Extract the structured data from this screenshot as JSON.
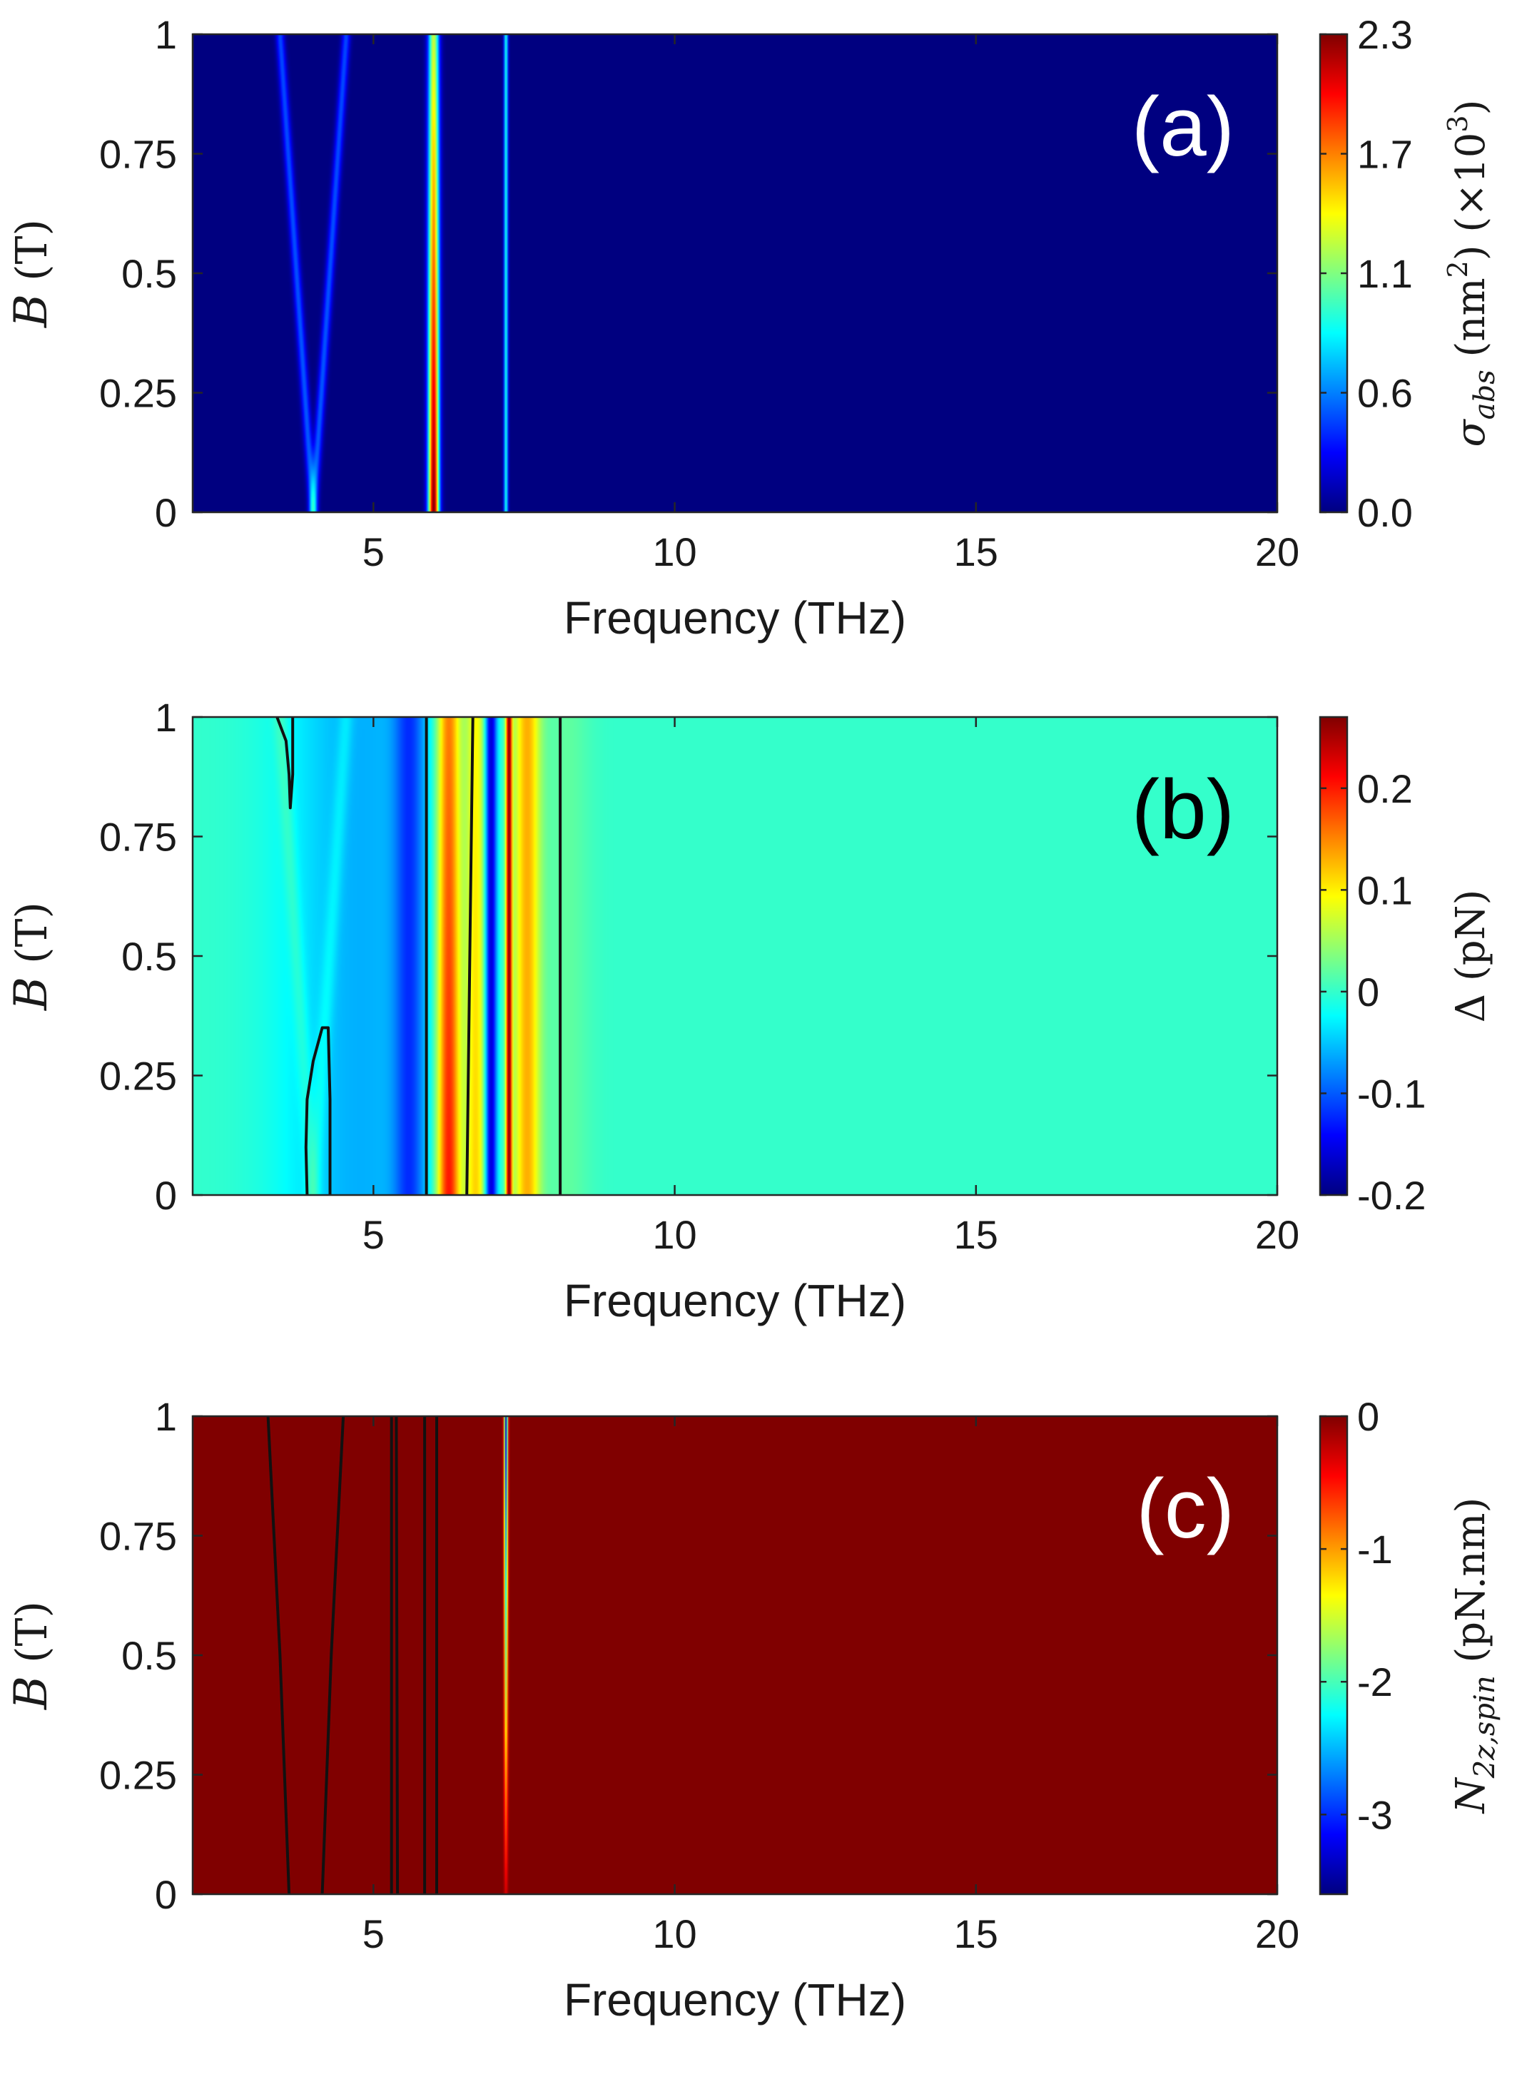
{
  "figure": {
    "xlabel": "Frequency (THz)",
    "ylabel_var": "B",
    "ylabel_unit": "(T)"
  },
  "colors": {
    "contour": "#111111",
    "axis": "#262626",
    "label_light": "#ffffff",
    "label_dark": "#000000"
  },
  "chart_data": [
    {
      "type": "heatmap",
      "panel_label": "(a)",
      "label_color": "light",
      "xlabel": "Frequency (THz)",
      "ylabel": "B (T)",
      "xlim": [
        2,
        20
      ],
      "ylim": [
        0,
        1
      ],
      "xticks": [
        "5",
        "10",
        "15",
        "20"
      ],
      "xtick_values": [
        5,
        10,
        15,
        20
      ],
      "yticks": [
        "0",
        "0.25",
        "0.5",
        "0.75",
        "1"
      ],
      "ytick_values": [
        0,
        0.25,
        0.5,
        0.75,
        1
      ],
      "colorbar": {
        "label_parts": [
          {
            "t": "σ",
            "i": true
          },
          {
            "t": "abs",
            "i": true,
            "sub": true
          },
          {
            "t": " (nm"
          },
          {
            "t": "2",
            "sup": true
          },
          {
            "t": ") (×10"
          },
          {
            "t": "3",
            "sup": true
          },
          {
            "t": ")"
          }
        ],
        "range": [
          0,
          2.3
        ],
        "ticks": [
          "0.0",
          "0.6",
          "1.1",
          "1.7",
          "2.3"
        ],
        "tick_values": [
          0,
          0.575,
          1.15,
          1.725,
          2.3
        ]
      },
      "background_value": 0,
      "features": [
        {
          "kind": "line",
          "f0": 4.0,
          "slope": -0.55,
          "width": 0.07,
          "amp0": 0.5,
          "amp1": 0.45
        },
        {
          "kind": "line",
          "f0": 4.0,
          "slope": 0.55,
          "width": 0.07,
          "amp0": 0.5,
          "amp1": 0.45
        },
        {
          "kind": "line",
          "f0": 6.0,
          "slope": 0.0,
          "width": 0.09,
          "amp0": 2.3,
          "amp1": 1.3
        },
        {
          "kind": "line",
          "f0": 7.2,
          "slope": 0.0,
          "width": 0.035,
          "amp0": 0.9,
          "amp1": 0.9
        }
      ],
      "contours": []
    },
    {
      "type": "heatmap",
      "panel_label": "(b)",
      "label_color": "dark",
      "xlabel": "Frequency (THz)",
      "ylabel": "B (T)",
      "xlim": [
        2,
        20
      ],
      "ylim": [
        0,
        1
      ],
      "xticks": [
        "5",
        "10",
        "15",
        "20"
      ],
      "xtick_values": [
        5,
        10,
        15,
        20
      ],
      "yticks": [
        "0",
        "0.25",
        "0.5",
        "0.75",
        "1"
      ],
      "ytick_values": [
        0,
        0.25,
        0.5,
        0.75,
        1
      ],
      "colorbar": {
        "label_parts": [
          {
            "t": "Δ (pN)"
          }
        ],
        "range": [
          -0.2,
          0.27
        ],
        "ticks": [
          "-0.2",
          "-0.1",
          "0",
          "0.1",
          "0.2"
        ],
        "tick_values": [
          -0.2,
          -0.1,
          0,
          0.1,
          0.2
        ]
      },
      "background_value": 0,
      "features": [
        {
          "kind": "dip",
          "f0": 4.8,
          "width": 1.3,
          "amp": -0.06
        },
        {
          "kind": "line",
          "f0": 4.0,
          "slope": -0.55,
          "width": 0.12,
          "amp0": 0.025,
          "amp1": 0.025
        },
        {
          "kind": "line",
          "f0": 4.0,
          "slope": 0.55,
          "width": 0.12,
          "amp0": 0.025,
          "amp1": 0.025
        },
        {
          "kind": "line",
          "f0": 5.6,
          "slope": 0.0,
          "width": 0.25,
          "amp0": -0.08,
          "amp1": -0.08
        },
        {
          "kind": "line",
          "f0": 6.25,
          "slope": 0.0,
          "width": 0.2,
          "amp0": 0.22,
          "amp1": 0.17
        },
        {
          "kind": "line",
          "f0": 6.7,
          "slope": 0.0,
          "width": 0.18,
          "amp0": 0.12,
          "amp1": 0.1
        },
        {
          "kind": "line",
          "f0": 6.95,
          "slope": 0.0,
          "width": 0.1,
          "amp0": -0.17,
          "amp1": -0.17
        },
        {
          "kind": "line",
          "f0": 7.25,
          "slope": 0.0,
          "width": 0.05,
          "amp0": 0.25,
          "amp1": 0.25
        },
        {
          "kind": "line",
          "f0": 7.55,
          "slope": 0.0,
          "width": 0.22,
          "amp0": 0.13,
          "amp1": 0.13
        },
        {
          "kind": "line",
          "f0": 8.2,
          "slope": 0.0,
          "width": 0.4,
          "amp0": 0.02,
          "amp1": 0.02
        }
      ],
      "contours": [
        [
          [
            3.4,
            1.0
          ],
          [
            3.55,
            0.95
          ],
          [
            3.6,
            0.88
          ],
          [
            3.62,
            0.81
          ],
          [
            3.66,
            0.88
          ],
          [
            3.66,
            1.0
          ]
        ],
        [
          [
            3.9,
            0.0
          ],
          [
            3.88,
            0.1
          ],
          [
            3.9,
            0.2
          ],
          [
            4.0,
            0.28
          ],
          [
            4.15,
            0.35
          ],
          [
            4.25,
            0.35
          ],
          [
            4.28,
            0.2
          ],
          [
            4.28,
            0.0
          ]
        ],
        [
          [
            5.88,
            0.0
          ],
          [
            5.88,
            1.0
          ]
        ],
        [
          [
            6.55,
            0.0
          ],
          [
            6.6,
            0.5
          ],
          [
            6.65,
            1.0
          ]
        ],
        [
          [
            8.1,
            0.0
          ],
          [
            8.1,
            1.0
          ]
        ]
      ]
    },
    {
      "type": "heatmap",
      "panel_label": "(c)",
      "label_color": "light",
      "xlabel": "Frequency (THz)",
      "ylabel": "B (T)",
      "xlim": [
        2,
        20
      ],
      "ylim": [
        0,
        1
      ],
      "xticks": [
        "5",
        "10",
        "15",
        "20"
      ],
      "xtick_values": [
        5,
        10,
        15,
        20
      ],
      "yticks": [
        "0",
        "0.25",
        "0.5",
        "0.75",
        "1"
      ],
      "ytick_values": [
        0,
        0.25,
        0.5,
        0.75,
        1
      ],
      "colorbar": {
        "label_parts": [
          {
            "t": "N",
            "i": true
          },
          {
            "t": "2z,spin",
            "i": true,
            "sub": true
          },
          {
            "t": " (pN.nm)"
          }
        ],
        "range": [
          -3.6,
          0
        ],
        "ticks": [
          "-3",
          "-2",
          "-1",
          "0"
        ],
        "tick_values": [
          -3,
          -2,
          -1,
          0
        ]
      },
      "background_value": 0,
      "features": [
        {
          "kind": "line",
          "f0": 7.2,
          "slope": 0.0,
          "width": 0.03,
          "amp0": -0.3,
          "amp1": -3.4
        }
      ],
      "contours": [
        [
          [
            3.25,
            1.0
          ],
          [
            3.45,
            0.5
          ],
          [
            3.6,
            0.0
          ]
        ],
        [
          [
            4.15,
            0.0
          ],
          [
            4.3,
            0.5
          ],
          [
            4.5,
            1.0
          ]
        ],
        [
          [
            5.3,
            0.0
          ],
          [
            5.3,
            1.0
          ]
        ],
        [
          [
            5.4,
            0.0
          ],
          [
            5.38,
            1.0
          ]
        ],
        [
          [
            5.85,
            0.0
          ],
          [
            5.85,
            1.0
          ]
        ],
        [
          [
            6.05,
            0.0
          ],
          [
            6.05,
            1.0
          ]
        ]
      ]
    }
  ]
}
